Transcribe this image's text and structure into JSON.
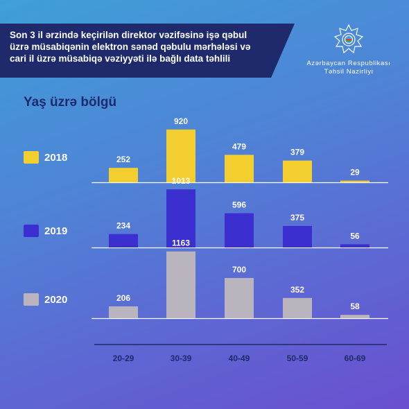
{
  "header": {
    "title_lines": [
      "Son 3 il ərzində keçirilən direktor vəzifəsinə işə qəbul",
      "üzrə müsabiqənin elektron sənəd qəbulu mərhələsi və",
      "cari il üzrə müsabiqə vəziyyəti ilə bağlı data təhlili"
    ],
    "org_line1": "Azərbaycan Respublikası",
    "org_line2": "Təhsil Nazirliyi",
    "emblem_icon": "ministry-star-emblem-icon"
  },
  "chart_data": {
    "type": "bar",
    "title": "Yaş üzrə bölgü",
    "categories": [
      "20-29",
      "30-39",
      "40-49",
      "50-59",
      "60-69"
    ],
    "series": [
      {
        "name": "2018",
        "values": [
          252,
          920,
          479,
          379,
          29
        ],
        "color": "#f2cf2f"
      },
      {
        "name": "2019",
        "values": [
          234,
          1013,
          596,
          375,
          56
        ],
        "color": "#3b2fd0"
      },
      {
        "name": "2020",
        "values": [
          206,
          1163,
          700,
          352,
          58
        ],
        "color": "#b9b4bd"
      }
    ],
    "xlabel": "",
    "ylabel": "",
    "grid": false,
    "legend_position": "left"
  },
  "colors": {
    "title_band": "#1e2a6b",
    "axis_text": "#1e2a6b",
    "baseline": "#ffffff"
  }
}
